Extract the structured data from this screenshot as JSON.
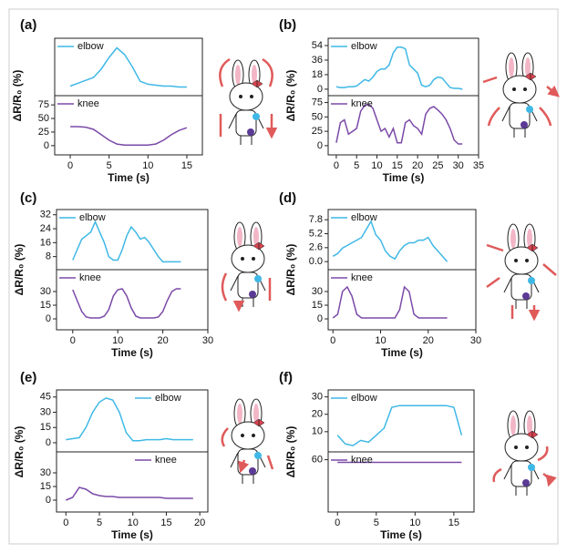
{
  "chart_data": [
    {
      "type": "line",
      "label": "(a)",
      "ylabel": "ΔR/R₀ (%)",
      "xlabel": "Time (s)",
      "xlim": [
        -2,
        17
      ],
      "xticks": [
        0,
        5,
        10,
        15
      ],
      "x": [
        0,
        1,
        2,
        3,
        4,
        5,
        6,
        7,
        8,
        9,
        10,
        11,
        12,
        13,
        14,
        15
      ],
      "subplots": [
        {
          "ylim": [
            -10,
            50
          ],
          "legend": "upper left",
          "series": [
            {
              "name": "elbow",
              "color": "#3fb8e6",
              "values": [
                0,
                3,
                6,
                9,
                18,
                30,
                40,
                33,
                20,
                5,
                2,
                1,
                0,
                0,
                -1,
                -1
              ]
            }
          ]
        },
        {
          "ylim": [
            -17,
            92
          ],
          "yticks": [
            0,
            25,
            50,
            75
          ],
          "legend": "upper left",
          "series": [
            {
              "name": "knee",
              "color": "#7b4aa8",
              "values": [
                35,
                35,
                34,
                30,
                20,
                10,
                3,
                1,
                1,
                1,
                1,
                3,
                10,
                20,
                28,
                33
              ]
            }
          ]
        }
      ]
    },
    {
      "type": "line",
      "label": "(b)",
      "ylabel": "ΔR/R₀ (%)",
      "xlabel": "Time (s)",
      "xlim": [
        -2,
        35
      ],
      "xticks": [
        0,
        5,
        10,
        15,
        20,
        25,
        30,
        35
      ],
      "x": [
        0,
        1,
        2,
        3,
        4,
        5,
        6,
        7,
        8,
        9,
        10,
        11,
        12,
        13,
        14,
        15,
        16,
        17,
        18,
        19,
        20,
        21,
        22,
        23,
        24,
        25,
        26,
        27,
        28,
        29,
        30,
        31
      ],
      "subplots": [
        {
          "ylim": [
            -8,
            63
          ],
          "yticks": [
            0,
            18,
            36,
            54
          ],
          "legend": "upper left",
          "series": [
            {
              "name": "elbow",
              "color": "#3fb8e6",
              "values": [
                3,
                2,
                2,
                3,
                3,
                4,
                8,
                12,
                10,
                15,
                22,
                25,
                25,
                30,
                45,
                52,
                52,
                50,
                30,
                25,
                20,
                5,
                3,
                5,
                12,
                15,
                14,
                8,
                2,
                1,
                1,
                0
              ]
            }
          ]
        },
        {
          "ylim": [
            -16,
            87
          ],
          "yticks": [
            0,
            25,
            50,
            75
          ],
          "legend": "upper left",
          "series": [
            {
              "name": "knee",
              "color": "#7b4aa8",
              "values": [
                5,
                40,
                45,
                20,
                25,
                30,
                60,
                70,
                72,
                65,
                45,
                25,
                30,
                15,
                30,
                5,
                5,
                40,
                45,
                35,
                30,
                20,
                55,
                65,
                68,
                62,
                55,
                45,
                30,
                10,
                3,
                3
              ]
            }
          ]
        }
      ]
    },
    {
      "type": "line",
      "label": "(c)",
      "ylabel": "ΔR/R₀ (%)",
      "xlabel": "Time (s)",
      "xlim": [
        -3.6,
        30
      ],
      "xticks": [
        0,
        10,
        20,
        30
      ],
      "x": [
        0,
        1,
        2,
        3,
        4,
        5,
        6,
        7,
        8,
        9,
        10,
        11,
        12,
        13,
        14,
        15,
        16,
        17,
        18,
        19,
        20,
        21,
        22,
        23,
        24
      ],
      "subplots": [
        {
          "ylim": [
            0.5,
            35
          ],
          "yticks": [
            8,
            16,
            24,
            32
          ],
          "legend": "upper left",
          "series": [
            {
              "name": "elbow",
              "color": "#3fb8e6",
              "values": [
                6,
                12,
                18,
                20,
                22,
                28,
                22,
                16,
                8,
                6,
                6,
                12,
                20,
                25,
                22,
                18,
                19,
                16,
                12,
                8,
                5,
                5,
                5,
                5,
                5
              ]
            }
          ]
        },
        {
          "ylim": [
            -12,
            54
          ],
          "yticks": [
            0,
            15,
            30
          ],
          "legend": "upper left",
          "series": [
            {
              "name": "knee",
              "color": "#7b4aa8",
              "values": [
                32,
                20,
                8,
                2,
                1,
                1,
                1,
                3,
                10,
                25,
                32,
                33,
                25,
                12,
                3,
                1,
                1,
                1,
                1,
                2,
                8,
                20,
                30,
                33,
                33
              ]
            }
          ]
        }
      ]
    },
    {
      "type": "line",
      "label": "(d)",
      "ylabel": "ΔR/R₀ (%)",
      "xlabel": "Time (s)",
      "xlim": [
        -1,
        30
      ],
      "xticks": [
        0,
        10,
        20,
        30
      ],
      "x": [
        0,
        1,
        2,
        3,
        4,
        5,
        6,
        7,
        8,
        9,
        10,
        11,
        12,
        13,
        14,
        15,
        16,
        17,
        18,
        19,
        20,
        21,
        22,
        23,
        24
      ],
      "subplots": [
        {
          "ylim": [
            -1.5,
            9.7
          ],
          "yticks": [
            {
              "value": 0,
              "label": "0.0"
            },
            2.6,
            5.2,
            7.8
          ],
          "legend": "upper left",
          "series": [
            {
              "name": "elbow",
              "color": "#3fb8e6",
              "values": [
                1,
                1.5,
                2.5,
                3,
                3.5,
                4,
                4.5,
                6,
                7.5,
                5,
                4,
                2,
                1,
                0.5,
                2,
                3,
                3.5,
                3.5,
                4,
                4,
                4.5,
                3,
                2,
                1,
                0
              ]
            }
          ]
        },
        {
          "ylim": [
            -12,
            54
          ],
          "yticks": [
            0,
            15,
            30
          ],
          "legend": "upper left",
          "series": [
            {
              "name": "knee",
              "color": "#7b4aa8",
              "values": [
                1,
                5,
                30,
                35,
                25,
                5,
                1,
                1,
                1,
                1,
                1,
                1,
                1,
                1,
                10,
                35,
                30,
                5,
                1,
                1,
                1,
                1,
                1,
                1,
                1
              ]
            }
          ]
        }
      ]
    },
    {
      "type": "line",
      "label": "(e)",
      "ylabel": "ΔR/R₀ (%)",
      "xlabel": "Time (s)",
      "xlim": [
        -1.4,
        21.2
      ],
      "xticks": [
        0,
        5,
        10,
        15,
        20
      ],
      "x": [
        0,
        1,
        2,
        3,
        4,
        5,
        6,
        7,
        8,
        9,
        10,
        11,
        12,
        13,
        14,
        15,
        16,
        17,
        18,
        19
      ],
      "subplots": [
        {
          "ylim": [
            -9,
            52
          ],
          "yticks": [
            0,
            15,
            30,
            45
          ],
          "legend": "upper right",
          "series": [
            {
              "name": "elbow",
              "color": "#3fb8e6",
              "values": [
                3,
                4,
                5,
                15,
                30,
                40,
                44,
                42,
                30,
                10,
                2,
                2,
                3,
                3,
                3,
                4,
                3,
                3,
                3,
                3
              ]
            }
          ]
        },
        {
          "ylim": [
            -13,
            53
          ],
          "yticks": [
            0,
            15,
            30
          ],
          "legend": "upper right",
          "series": [
            {
              "name": "knee",
              "color": "#7b4aa8",
              "values": [
                0,
                3,
                14,
                12,
                7,
                5,
                4,
                4,
                3,
                3,
                3,
                3,
                3,
                3,
                3,
                2,
                2,
                2,
                2,
                2
              ]
            }
          ]
        }
      ]
    },
    {
      "type": "line",
      "label": "(f)",
      "ylabel": "ΔR/R₀ (%)",
      "xlabel": "Time (s)",
      "xlim": [
        -1.2,
        17.6
      ],
      "xticks": [
        0,
        5,
        10,
        15
      ],
      "x": [
        0,
        1,
        2,
        3,
        4,
        5,
        6,
        7,
        8,
        9,
        10,
        11,
        12,
        13,
        14,
        15,
        16
      ],
      "subplots": [
        {
          "ylim": [
            -1.6,
            34
          ],
          "yticks": [
            10,
            20,
            30
          ],
          "legend": "upper left",
          "series": [
            {
              "name": "elbow",
              "color": "#3fb8e6",
              "values": [
                8,
                3,
                2,
                5,
                4,
                8,
                12,
                24,
                25,
                25,
                25,
                25,
                25,
                25,
                25,
                24,
                8
              ]
            }
          ]
        },
        {
          "ylim": [
            20,
            66
          ],
          "yticks": [
            60
          ],
          "legend": "upper left",
          "series": [
            {
              "name": "knee",
              "color": "#7b4aa8",
              "values": [
                58,
                58,
                58,
                58,
                58,
                58,
                58,
                58,
                58,
                58,
                58,
                58,
                58,
                58,
                58,
                58,
                58
              ]
            }
          ]
        }
      ]
    }
  ]
}
